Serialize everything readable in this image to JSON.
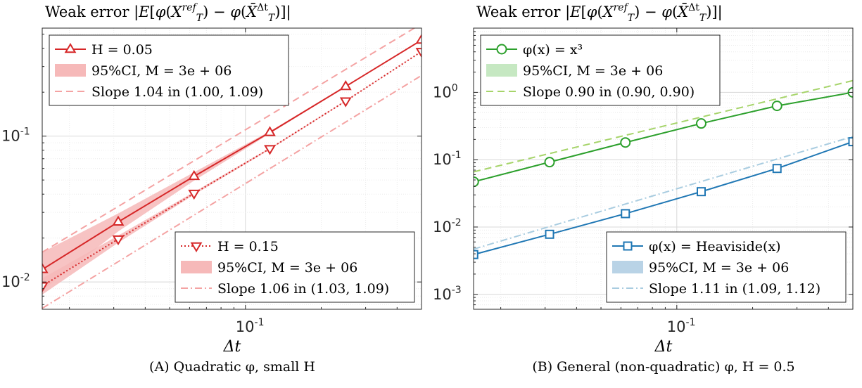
{
  "figure": {
    "panels": [
      {
        "title": "Weak error |E[φ(X_T^ref) − φ(X̄_T^Δt)]|",
        "xlabel": "Δt",
        "caption": "(A) Quadratic φ, small H",
        "legends": [
          {
            "position": "top-left",
            "entries": [
              {
                "label": "H = 0.05",
                "kind": "line-marker"
              },
              {
                "label": "95%CI, M = 3e + 06",
                "kind": "patch"
              },
              {
                "label": "Slope 1.04 in (1.00, 1.09)",
                "kind": "dashed"
              }
            ]
          },
          {
            "position": "bottom-right",
            "entries": [
              {
                "label": "H = 0.15",
                "kind": "line-marker"
              },
              {
                "label": "95%CI, M = 3e + 06",
                "kind": "patch"
              },
              {
                "label": "Slope 1.06 in (1.03, 1.09)",
                "kind": "dashdot"
              }
            ]
          }
        ]
      },
      {
        "title": "Weak error |E[φ(X_T^ref) − φ(X̄_T^Δt)]|",
        "xlabel": "Δt",
        "caption": "(B) General (non-quadratic) φ, H = 0.5",
        "legends": [
          {
            "position": "top-left",
            "entries": [
              {
                "label": "φ(x) = x³",
                "kind": "line-marker"
              },
              {
                "label": "95%CI, M = 3e + 06",
                "kind": "patch"
              },
              {
                "label": "Slope 0.90 in (0.90, 0.90)",
                "kind": "dashed"
              }
            ]
          },
          {
            "position": "bottom-right",
            "entries": [
              {
                "label": "φ(x) = Heaviside(x)",
                "kind": "line-marker"
              },
              {
                "label": "95%CI, M = 3e + 06",
                "kind": "patch"
              },
              {
                "label": "Slope 1.11 in (1.09, 1.12)",
                "kind": "dashdot"
              }
            ]
          }
        ]
      }
    ]
  },
  "chart_data": [
    {
      "type": "line",
      "xscale": "log",
      "yscale": "log",
      "xlim": [
        0.0156,
        0.5
      ],
      "ylim": [
        0.0065,
        0.55
      ],
      "grid": true,
      "xticks": [
        {
          "value": 0.1,
          "label": "10^-1"
        }
      ],
      "yticks": [
        {
          "value": 0.01,
          "label": "10^-2"
        },
        {
          "value": 0.1,
          "label": "10^-1"
        }
      ],
      "x": [
        0.015625,
        0.03125,
        0.0625,
        0.125,
        0.25,
        0.5
      ],
      "series": [
        {
          "name": "H = 0.05",
          "color": "#d62728",
          "marker": "triangle-up",
          "linestyle": "solid",
          "values": [
            0.0122,
            0.0258,
            0.053,
            0.106,
            0.219,
            0.455
          ],
          "ci_low": [
            0.0088,
            0.0222,
            0.0495,
            0.104,
            0.217,
            0.453
          ],
          "ci_high": [
            0.016,
            0.0295,
            0.0565,
            0.108,
            0.221,
            0.457
          ]
        },
        {
          "name": "H = 0.15",
          "color": "#d62728",
          "marker": "triangle-down",
          "linestyle": "dotted",
          "values": [
            0.0094,
            0.0197,
            0.0405,
            0.082,
            0.174,
            0.38
          ],
          "ci_low": [
            0.0082,
            0.0186,
            0.0396,
            0.081,
            0.173,
            0.379
          ],
          "ci_high": [
            0.0106,
            0.0208,
            0.0414,
            0.083,
            0.175,
            0.381
          ]
        }
      ],
      "slope_lines": [
        {
          "series": "H = 0.05",
          "style": "dashed",
          "color": "#f4a3a3",
          "slope": 1.04,
          "y_at_xmin": 0.016
        },
        {
          "series": "H = 0.15",
          "style": "dashdot",
          "color": "#f4a3a3",
          "slope": 1.06,
          "y_at_xmin": 0.0066
        }
      ]
    },
    {
      "type": "line",
      "xscale": "log",
      "yscale": "log",
      "xlim": [
        0.0156,
        0.5
      ],
      "ylim": [
        0.0006,
        9.0
      ],
      "grid": true,
      "xticks": [
        {
          "value": 0.1,
          "label": "10^-1"
        }
      ],
      "yticks": [
        {
          "value": 0.001,
          "label": "10^-3"
        },
        {
          "value": 0.01,
          "label": "10^-2"
        },
        {
          "value": 0.1,
          "label": "10^-1"
        },
        {
          "value": 1,
          "label": "10^0"
        }
      ],
      "x": [
        0.015625,
        0.03125,
        0.0625,
        0.125,
        0.25,
        0.5
      ],
      "series": [
        {
          "name": "φ(x) = x³",
          "color": "#2ca02c",
          "marker": "circle",
          "linestyle": "solid",
          "values": [
            0.047,
            0.092,
            0.18,
            0.345,
            0.63,
            1.0
          ]
        },
        {
          "name": "φ(x) = Heaviside(x)",
          "color": "#1f77b4",
          "marker": "square",
          "linestyle": "solid",
          "values": [
            0.0039,
            0.0078,
            0.0158,
            0.0335,
            0.074,
            0.185
          ]
        }
      ],
      "slope_lines": [
        {
          "series": "φ(x) = x³",
          "style": "dashed",
          "color": "#a6d46a",
          "slope": 0.9,
          "y_at_xmin": 0.066
        },
        {
          "series": "φ(x) = Heaviside(x)",
          "style": "dashdot",
          "color": "#a8cce0",
          "slope": 1.11,
          "y_at_xmin": 0.0047
        }
      ]
    }
  ]
}
